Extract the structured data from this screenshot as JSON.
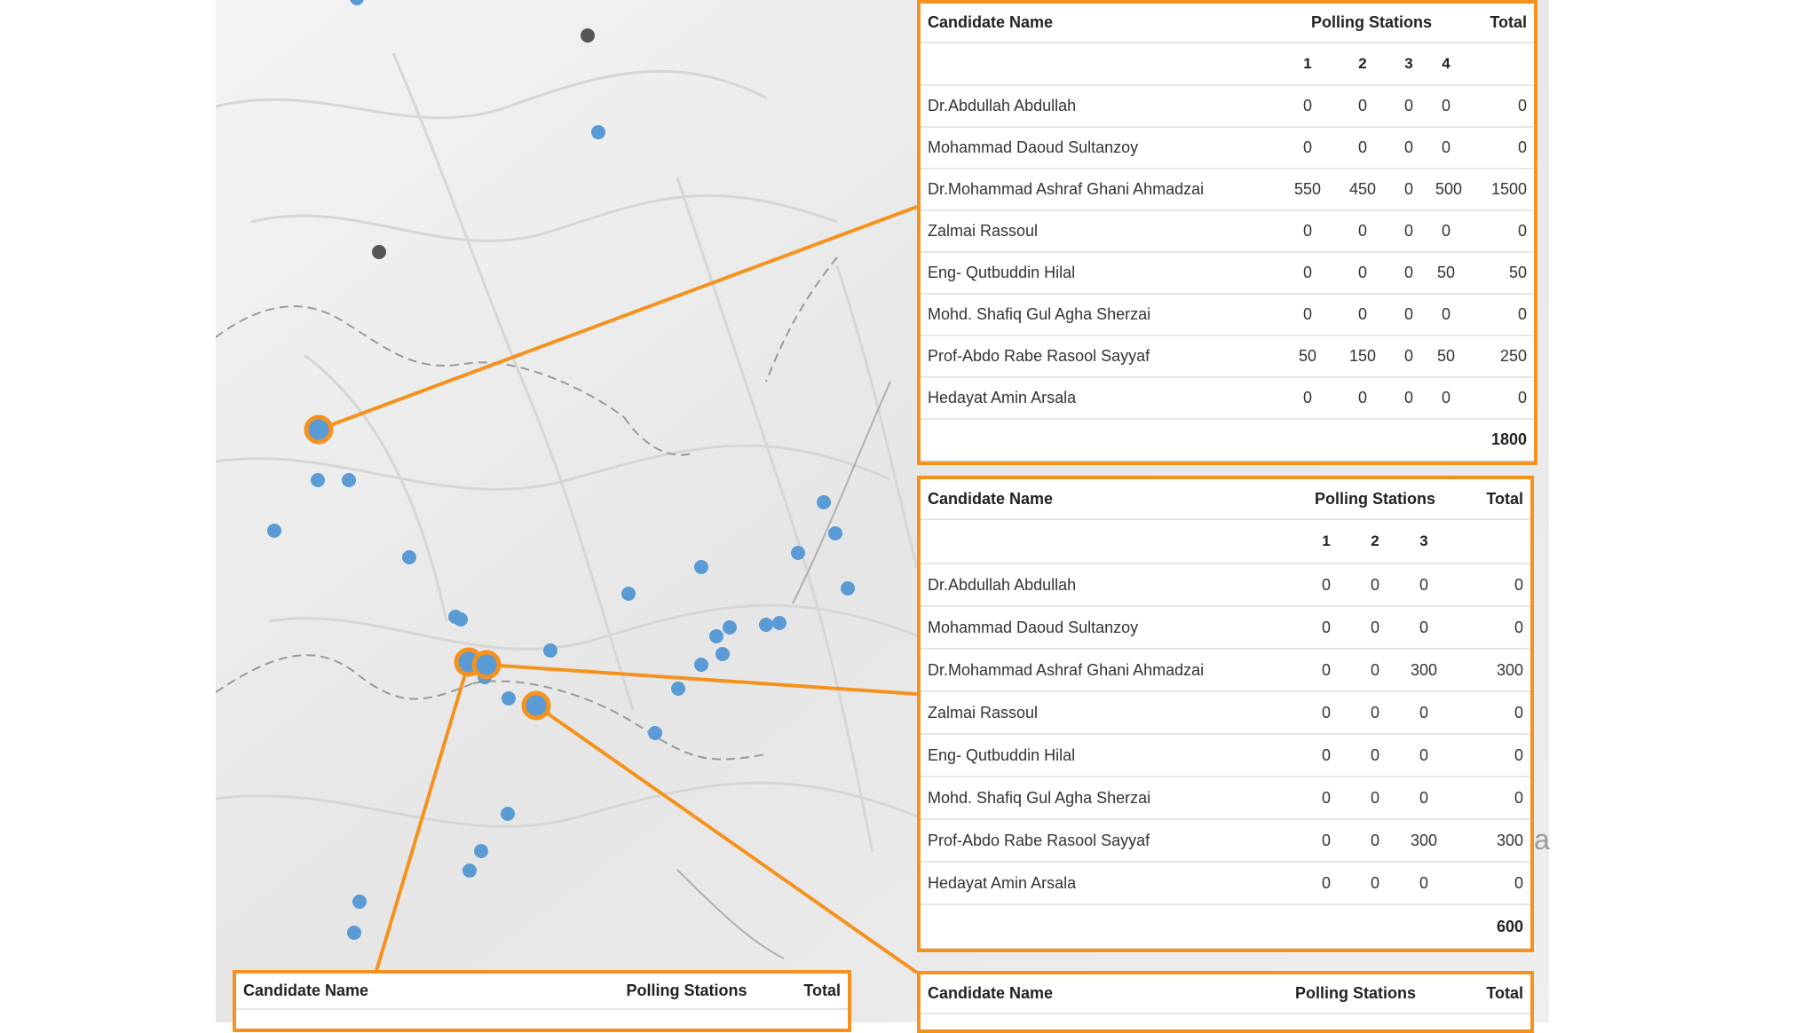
{
  "colors": {
    "accent": "#f5921e",
    "marker": "#5b9bd5",
    "marker_inactive": "#555555",
    "map_bg": "#ececec"
  },
  "map": {
    "markers_blue": [
      [
        402,
        -2
      ],
      [
        674,
        149
      ],
      [
        358,
        541
      ],
      [
        309,
        598
      ],
      [
        461,
        628
      ],
      [
        393,
        541
      ],
      [
        519,
        698
      ],
      [
        620,
        733
      ],
      [
        513,
        695
      ],
      [
        708,
        669
      ],
      [
        573,
        787
      ],
      [
        764,
        776
      ],
      [
        546,
        763
      ],
      [
        790,
        639
      ],
      [
        822,
        707
      ],
      [
        863,
        704
      ],
      [
        899,
        623
      ],
      [
        941,
        601
      ],
      [
        955,
        663
      ],
      [
        928,
        566
      ],
      [
        878,
        702
      ],
      [
        807,
        717
      ],
      [
        814,
        737
      ],
      [
        790,
        749
      ],
      [
        738,
        826
      ],
      [
        572,
        917
      ],
      [
        542,
        959
      ],
      [
        529,
        981
      ],
      [
        405,
        1016
      ],
      [
        399,
        1051
      ]
    ],
    "markers_gray": [
      [
        662,
        40
      ],
      [
        427,
        284
      ]
    ],
    "highlight_rings": [
      [
        359,
        484
      ],
      [
        528,
        746
      ],
      [
        548,
        749
      ],
      [
        604,
        795
      ]
    ],
    "edge_letter": "a"
  },
  "panels": [
    {
      "header": {
        "name": "Candidate Name",
        "stations": "Polling Stations",
        "total": "Total"
      },
      "stations": [
        "1",
        "2",
        "3",
        "4"
      ],
      "rows": [
        {
          "name": "Dr.Abdullah Abdullah",
          "values": [
            "0",
            "0",
            "0",
            "0"
          ],
          "total": "0"
        },
        {
          "name": "Mohammad Daoud Sultanzoy",
          "values": [
            "0",
            "0",
            "0",
            "0"
          ],
          "total": "0"
        },
        {
          "name": "Dr.Mohammad Ashraf Ghani Ahmadzai",
          "values": [
            "550",
            "450",
            "0",
            "500"
          ],
          "total": "1500"
        },
        {
          "name": "Zalmai Rassoul",
          "values": [
            "0",
            "0",
            "0",
            "0"
          ],
          "total": "0"
        },
        {
          "name": "Eng- Qutbuddin Hilal",
          "values": [
            "0",
            "0",
            "0",
            "50"
          ],
          "total": "50"
        },
        {
          "name": "Mohd. Shafiq Gul Agha Sherzai",
          "values": [
            "0",
            "0",
            "0",
            "0"
          ],
          "total": "0"
        },
        {
          "name": "Prof-Abdo Rabe Rasool Sayyaf",
          "values": [
            "50",
            "150",
            "0",
            "50"
          ],
          "total": "250"
        },
        {
          "name": "Hedayat Amin Arsala",
          "values": [
            "0",
            "0",
            "0",
            "0"
          ],
          "total": "0"
        }
      ],
      "grand_total": "1800"
    },
    {
      "header": {
        "name": "Candidate Name",
        "stations": "Polling Stations",
        "total": "Total"
      },
      "stations": [
        "1",
        "2",
        "3"
      ],
      "rows": [
        {
          "name": "Dr.Abdullah Abdullah",
          "values": [
            "0",
            "0",
            "0"
          ],
          "total": "0"
        },
        {
          "name": "Mohammad Daoud Sultanzoy",
          "values": [
            "0",
            "0",
            "0"
          ],
          "total": "0"
        },
        {
          "name": "Dr.Mohammad Ashraf Ghani Ahmadzai",
          "values": [
            "0",
            "0",
            "300"
          ],
          "total": "300"
        },
        {
          "name": "Zalmai Rassoul",
          "values": [
            "0",
            "0",
            "0"
          ],
          "total": "0"
        },
        {
          "name": "Eng- Qutbuddin Hilal",
          "values": [
            "0",
            "0",
            "0"
          ],
          "total": "0"
        },
        {
          "name": "Mohd. Shafiq Gul Agha Sherzai",
          "values": [
            "0",
            "0",
            "0"
          ],
          "total": "0"
        },
        {
          "name": "Prof-Abdo Rabe Rasool Sayyaf",
          "values": [
            "0",
            "0",
            "300"
          ],
          "total": "300"
        },
        {
          "name": "Hedayat Amin Arsala",
          "values": [
            "0",
            "0",
            "0"
          ],
          "total": "0"
        }
      ],
      "grand_total": "600"
    },
    {
      "header": {
        "name": "Candidate Name",
        "stations": "Polling Stations",
        "total": "Total"
      }
    },
    {
      "header": {
        "name": "Candidate Name",
        "stations": "Polling Stations",
        "total": "Total"
      }
    }
  ]
}
